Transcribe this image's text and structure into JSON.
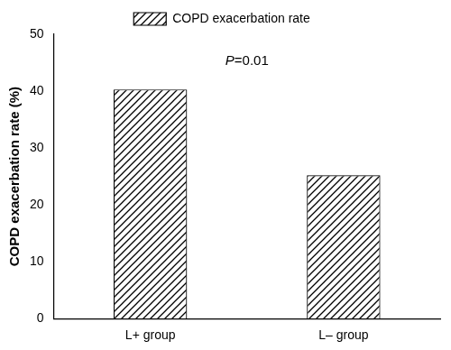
{
  "chart_data": {
    "type": "bar",
    "categories": [
      "L+ group",
      "L– group"
    ],
    "series": [
      {
        "name": "COPD exacerbation rate",
        "color": "#000000",
        "values": [
          40.3,
          25.2
        ]
      }
    ],
    "y_label": "COPD exacerbation rate (%)",
    "annotation": "P=0.01",
    "ylim": [
      0,
      50
    ],
    "yticks": [
      0,
      10,
      20,
      30,
      40,
      50
    ],
    "grid": false,
    "legend": "top"
  }
}
